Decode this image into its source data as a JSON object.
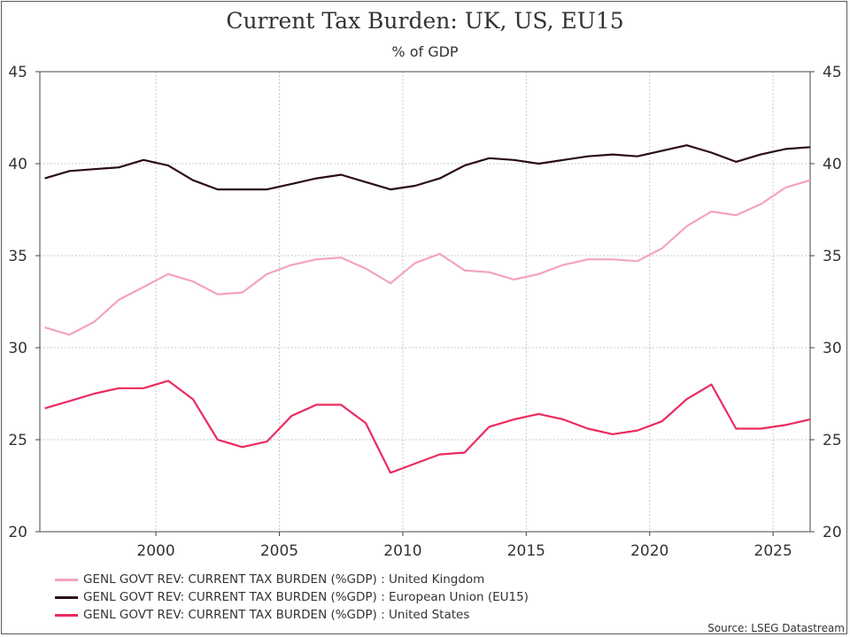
{
  "chart_data": {
    "type": "line",
    "title": "Current Tax Burden: UK, US, EU15",
    "subtitle": "% of GDP",
    "xlim": [
      1995.3,
      2026.5
    ],
    "ylim": [
      20,
      45
    ],
    "x_ticks": [
      2000,
      2005,
      2010,
      2015,
      2020,
      2025
    ],
    "y_ticks": [
      20,
      25,
      30,
      35,
      40,
      45
    ],
    "grid": true,
    "legend_position": "bottom-left",
    "x": [
      1995.5,
      1996.5,
      1997.5,
      1998.5,
      1999.5,
      2000.5,
      2001.5,
      2002.5,
      2003.5,
      2004.5,
      2005.5,
      2006.5,
      2007.5,
      2008.5,
      2009.5,
      2010.5,
      2011.5,
      2012.5,
      2013.5,
      2014.5,
      2015.5,
      2016.5,
      2017.5,
      2018.5,
      2019.5,
      2020.5,
      2021.5,
      2022.5,
      2023.5,
      2024.5,
      2025.5,
      2026.5
    ],
    "series": [
      {
        "name": "GENL GOVT REV: CURRENT TAX BURDEN (%GDP) : United Kingdom",
        "color": "#f4a3bc",
        "values": [
          31.1,
          30.7,
          31.4,
          32.6,
          33.3,
          34.0,
          33.6,
          32.9,
          33.0,
          34.0,
          34.5,
          34.8,
          34.9,
          34.3,
          33.5,
          34.6,
          35.1,
          34.2,
          34.1,
          33.7,
          34.0,
          34.5,
          34.8,
          34.8,
          34.7,
          35.4,
          36.6,
          37.4,
          37.2,
          37.8,
          38.7,
          39.1
        ]
      },
      {
        "name": "GENL GOVT REV: CURRENT TAX BURDEN (%GDP) : European Union (EU15)",
        "color": "#2a0a1c",
        "values": [
          39.2,
          39.6,
          39.7,
          39.8,
          40.2,
          39.9,
          39.1,
          38.6,
          38.6,
          38.6,
          38.9,
          39.2,
          39.4,
          39.0,
          38.6,
          38.8,
          39.2,
          39.9,
          40.3,
          40.2,
          40.0,
          40.2,
          40.4,
          40.5,
          40.4,
          40.7,
          41.0,
          40.6,
          40.1,
          40.5,
          40.8,
          40.9
        ]
      },
      {
        "name": "GENL GOVT REV: CURRENT TAX BURDEN (%GDP) : United States",
        "color": "#ec2a5e",
        "values": [
          26.7,
          27.1,
          27.5,
          27.8,
          27.8,
          28.2,
          27.2,
          25.0,
          24.6,
          24.9,
          26.3,
          26.9,
          26.9,
          25.9,
          23.2,
          23.7,
          24.2,
          24.3,
          25.7,
          26.1,
          26.4,
          26.1,
          25.6,
          25.3,
          25.5,
          26.0,
          27.2,
          28.0,
          25.6,
          25.6,
          25.8,
          26.1
        ]
      }
    ]
  },
  "source": "Source: LSEG Datastream"
}
